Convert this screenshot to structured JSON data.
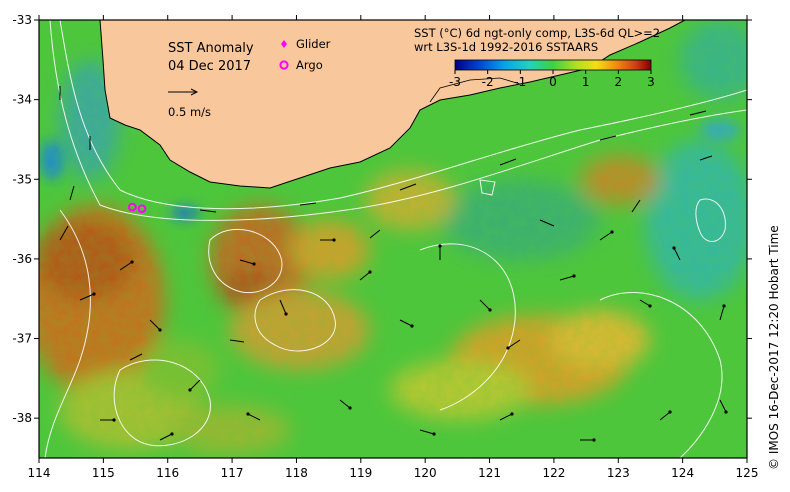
{
  "map": {
    "title": "SST Anomaly",
    "date": "04 Dec 2017",
    "legend_glider": "Glider",
    "legend_argo": "Argo",
    "velocity_scale_label": "0.5 m/s",
    "colorbar_title_line1": "SST (°C) 6d ngt-only comp, L3S-6d QL>=2",
    "colorbar_title_line2": "wrt L3S-1d 1992-2016 SSTAARS",
    "colorbar_ticks": [
      "-3",
      "-2",
      "-1",
      "0",
      "1",
      "2",
      "3"
    ],
    "colorbar_range": [
      -3,
      3
    ],
    "credit": "© IMOS 16-Dec-2017 12:20 Hobart Time",
    "lon_ticks": [
      "114",
      "115",
      "116",
      "117",
      "118",
      "119",
      "120",
      "121",
      "122",
      "123",
      "124",
      "125"
    ],
    "lat_ticks": [
      "-33",
      "-34",
      "-35",
      "-36",
      "-37",
      "-38"
    ],
    "lon_range": [
      114,
      125
    ],
    "lat_range": [
      -38.5,
      -33
    ],
    "colors": {
      "land": "#f8c89c",
      "anomaly_neutral": "#49c83a",
      "anomaly_warm": "#c8641c",
      "anomaly_cool": "#2a9ad6",
      "glider_marker": "#ff00ff",
      "argo_marker": "#ff00ff"
    },
    "argo_floats": [
      {
        "lon": 115.45,
        "lat": -35.35
      },
      {
        "lon": 115.6,
        "lat": -35.37
      }
    ]
  }
}
